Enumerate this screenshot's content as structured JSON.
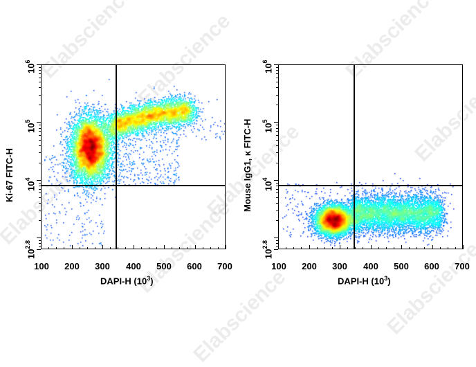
{
  "watermark": "Elabscience",
  "chart_data": [
    {
      "type": "scatter",
      "subtype": "flow-cytometry-density-dotplot",
      "title": "",
      "xlabel": "DAPI-H (10^3)",
      "ylabel": "Ki-67 FITC-H",
      "xlim": [
        100,
        700
      ],
      "ylim_log10": [
        2.8,
        6
      ],
      "x_ticks": [
        100,
        200,
        300,
        400,
        500,
        600,
        700
      ],
      "y_ticks": [
        "10^2.8",
        "10^4",
        "10^5",
        "10^6"
      ],
      "gate": {
        "x": 345,
        "y_log10": 3.93
      },
      "populations": [
        {
          "name": "G1 cluster",
          "x_center": 260,
          "y_log10_center": 4.55,
          "density": "high"
        },
        {
          "name": "S/G2 arc",
          "x_range": [
            350,
            600
          ],
          "y_log10_center": 5.1,
          "density": "medium"
        }
      ],
      "grid": false,
      "legend": "none"
    },
    {
      "type": "scatter",
      "subtype": "flow-cytometry-density-dotplot",
      "title": "",
      "xlabel": "DAPI-H (10^3)",
      "ylabel": "Mouse IgG1, κ FITC-H",
      "xlim": [
        100,
        700
      ],
      "ylim_log10": [
        2.8,
        6
      ],
      "x_ticks": [
        100,
        200,
        300,
        400,
        500,
        600,
        700
      ],
      "y_ticks": [
        "10^2.8",
        "10^4",
        "10^5",
        "10^6"
      ],
      "gate": {
        "x": 345,
        "y_log10": 3.93
      },
      "populations": [
        {
          "name": "G1 cluster",
          "x_center": 280,
          "y_log10_center": 3.3,
          "density": "high"
        },
        {
          "name": "S/G2 band",
          "x_range": [
            350,
            620
          ],
          "y_log10_center": 3.4,
          "density": "medium"
        }
      ],
      "grid": false,
      "legend": "none"
    }
  ],
  "left": {
    "ylabel": "Ki-67 FITC-H",
    "xlabel_main": "DAPI-H  (10",
    "xlabel_exp": "3",
    "xlabel_close": ")",
    "yticks": [
      {
        "base": "10",
        "exp": "6"
      },
      {
        "base": "10",
        "exp": "5"
      },
      {
        "base": "10",
        "exp": "4"
      },
      {
        "base": "10",
        "exp": "2.8"
      }
    ],
    "xticks": [
      "100",
      "200",
      "300",
      "400",
      "500",
      "600",
      "700"
    ]
  },
  "right": {
    "ylabel": "Mouse IgG1, κ FITC-H",
    "xlabel_main": "DAPI-H  (10",
    "xlabel_exp": "3",
    "xlabel_close": ")",
    "yticks": [
      {
        "base": "10",
        "exp": "6"
      },
      {
        "base": "10",
        "exp": "5"
      },
      {
        "base": "10",
        "exp": "4"
      },
      {
        "base": "10",
        "exp": "2.8"
      }
    ],
    "xticks": [
      "100",
      "200",
      "300",
      "400",
      "500",
      "600",
      "700"
    ]
  }
}
